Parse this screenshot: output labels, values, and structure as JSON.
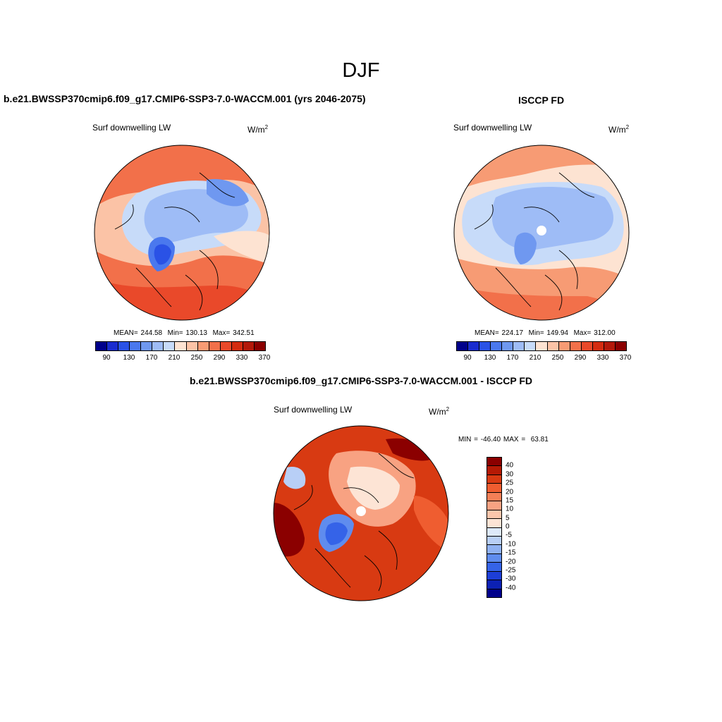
{
  "title": "DJF",
  "panels": [
    {
      "id": "model",
      "header": "b.e21.BWSSP370cmip6.f09_g17.CMIP6-SSP3-7.0-WACCM.001 (yrs 2046-2075)",
      "variable": "Surf downwelling LW",
      "units": "W/m",
      "units_exp": "2",
      "mean_label": "MEAN=",
      "mean": "244.58",
      "min_label": "Min=",
      "min": "130.13",
      "max_label": "Max=",
      "max": "342.51"
    },
    {
      "id": "obs",
      "header": "ISCCP FD",
      "variable": "Surf downwelling LW",
      "units": "W/m",
      "units_exp": "2",
      "mean_label": "MEAN=",
      "mean": "224.17",
      "min_label": "Min=",
      "min": "149.94",
      "max_label": "Max=",
      "max": "312.00"
    },
    {
      "id": "diff",
      "header": "b.e21.BWSSP370cmip6.f09_g17.CMIP6-SSP3-7.0-WACCM.001 - ISCCP FD",
      "variable": "Surf downwelling LW",
      "units": "W/m",
      "units_exp": "2",
      "min_label": "MIN =",
      "min": "-46.40",
      "max_label": "MAX =",
      "max": "63.81"
    }
  ],
  "abs_colorbar": {
    "colors": [
      "#00008b",
      "#1a2ccf",
      "#2a52e6",
      "#4a78ee",
      "#6f98f0",
      "#9ebcf6",
      "#c7dbf9",
      "#fde3d2",
      "#fbc3a6",
      "#f79b74",
      "#f2704a",
      "#e9492a",
      "#d42c10",
      "#b3190a",
      "#8b0000"
    ],
    "ticks": [
      "90",
      "130",
      "170",
      "210",
      "250",
      "290",
      "330",
      "370"
    ]
  },
  "diff_colorbar": {
    "colors": [
      "#8b0000",
      "#b51a05",
      "#d83a12",
      "#ef5d30",
      "#f47f56",
      "#f8a282",
      "#fbc6ac",
      "#fde4d5",
      "#dde9fa",
      "#b8cff6",
      "#8fb1f2",
      "#5f8cee",
      "#3563e8",
      "#1d3ed7",
      "#0c21b4",
      "#00008b"
    ],
    "ticks": [
      "40",
      "30",
      "25",
      "20",
      "15",
      "10",
      "5",
      "0",
      "-5",
      "-10",
      "-15",
      "-20",
      "-25",
      "-30",
      "-40"
    ]
  }
}
